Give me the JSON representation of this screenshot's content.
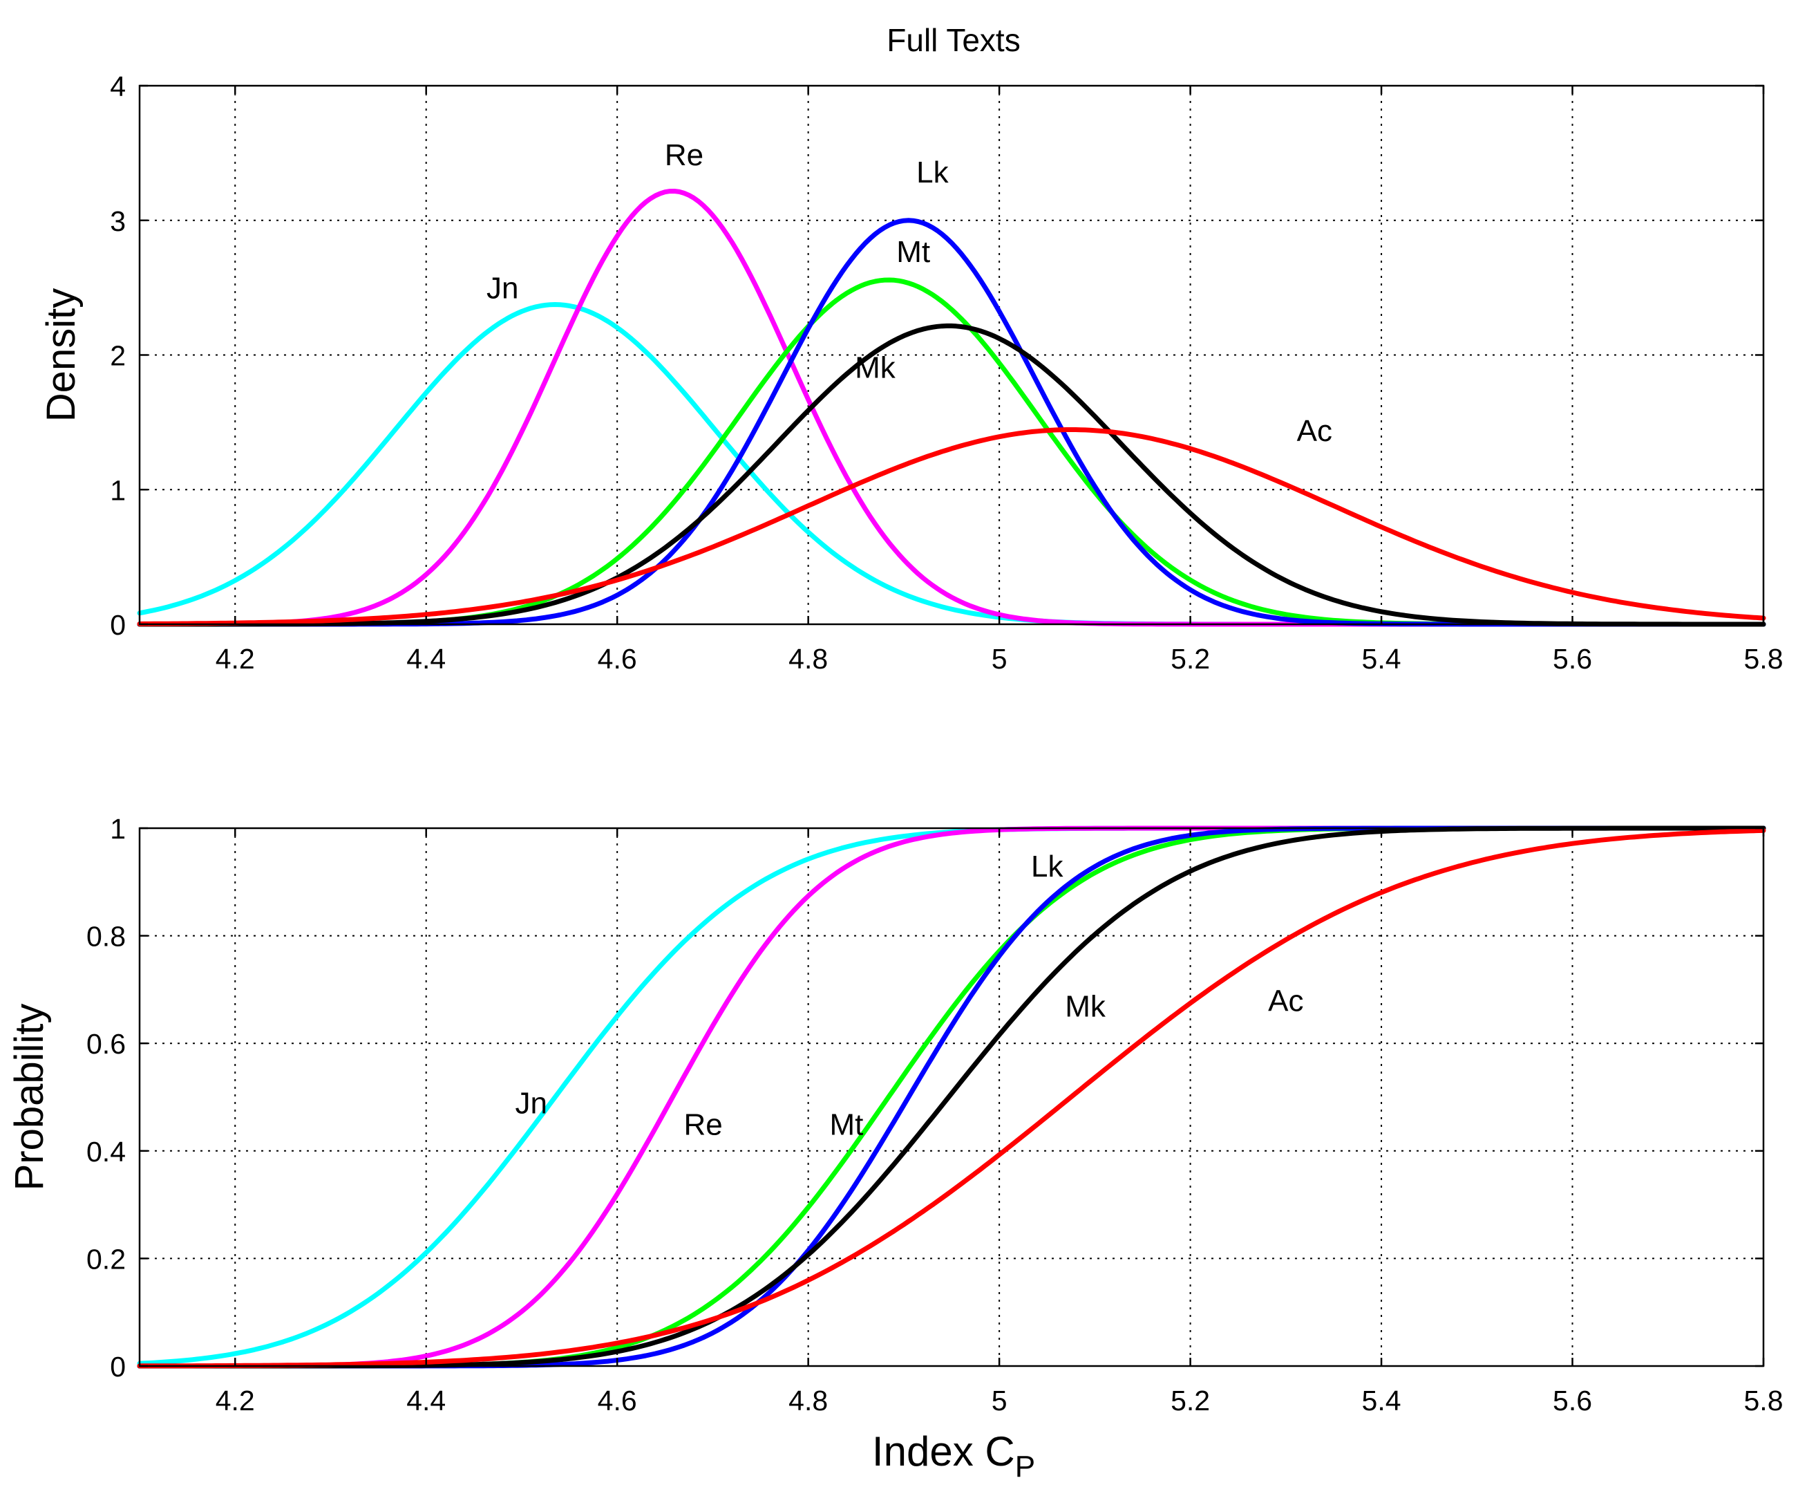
{
  "chart_data": [
    {
      "type": "line",
      "title": "Full Texts",
      "ylabel": "Density",
      "xlabel": "",
      "xlim": [
        4.1,
        5.8
      ],
      "ylim": [
        0,
        4
      ],
      "xticks": [
        4.2,
        4.4,
        4.6,
        4.8,
        5,
        5.2,
        5.4,
        5.6,
        5.8
      ],
      "yticks": [
        0,
        1,
        2,
        3,
        4
      ],
      "grid": true,
      "series": [
        {
          "name": "Jn",
          "color": "#00ffff",
          "mu": 4.535,
          "sigma": 0.168,
          "label_at": [
            4.48,
            2.42
          ]
        },
        {
          "name": "Re",
          "color": "#ff00ff",
          "mu": 4.658,
          "sigma": 0.124,
          "label_at": [
            4.67,
            3.41
          ]
        },
        {
          "name": "Mt",
          "color": "#00ff00",
          "mu": 4.884,
          "sigma": 0.156,
          "label_at": [
            4.91,
            2.69
          ]
        },
        {
          "name": "Lk",
          "color": "#0000ff",
          "mu": 4.905,
          "sigma": 0.133,
          "label_at": [
            4.93,
            3.28
          ]
        },
        {
          "name": "Mk",
          "color": "#000000",
          "mu": 4.947,
          "sigma": 0.18,
          "label_at": [
            4.87,
            1.83
          ]
        },
        {
          "name": "Ac",
          "color": "#ff0000",
          "mu": 5.075,
          "sigma": 0.276,
          "label_at": [
            5.33,
            1.36
          ]
        }
      ]
    },
    {
      "type": "line",
      "title": "",
      "ylabel": "Probability",
      "xlabel": "Index C",
      "xlabel_sub": "P",
      "xlim": [
        4.1,
        5.8
      ],
      "ylim": [
        0,
        1
      ],
      "xticks": [
        4.2,
        4.4,
        4.6,
        4.8,
        5,
        5.2,
        5.4,
        5.6,
        5.8
      ],
      "yticks": [
        0,
        0.2,
        0.4,
        0.6,
        0.8,
        1
      ],
      "ytick_labels": [
        "0",
        "0.2",
        "0.4",
        "0.6",
        "0.8",
        "1"
      ],
      "grid": true,
      "series": [
        {
          "name": "Jn",
          "color": "#00ffff",
          "mu": 4.535,
          "sigma": 0.168,
          "label_at": [
            4.51,
            0.47
          ]
        },
        {
          "name": "Re",
          "color": "#ff00ff",
          "mu": 4.658,
          "sigma": 0.124,
          "label_at": [
            4.69,
            0.43
          ]
        },
        {
          "name": "Mt",
          "color": "#00ff00",
          "mu": 4.884,
          "sigma": 0.156,
          "label_at": [
            4.84,
            0.43
          ]
        },
        {
          "name": "Lk",
          "color": "#0000ff",
          "mu": 4.905,
          "sigma": 0.133,
          "label_at": [
            5.05,
            0.91
          ]
        },
        {
          "name": "Mk",
          "color": "#000000",
          "mu": 4.947,
          "sigma": 0.18,
          "label_at": [
            5.09,
            0.65
          ]
        },
        {
          "name": "Ac",
          "color": "#ff0000",
          "mu": 5.075,
          "sigma": 0.276,
          "label_at": [
            5.3,
            0.66
          ]
        }
      ]
    }
  ]
}
